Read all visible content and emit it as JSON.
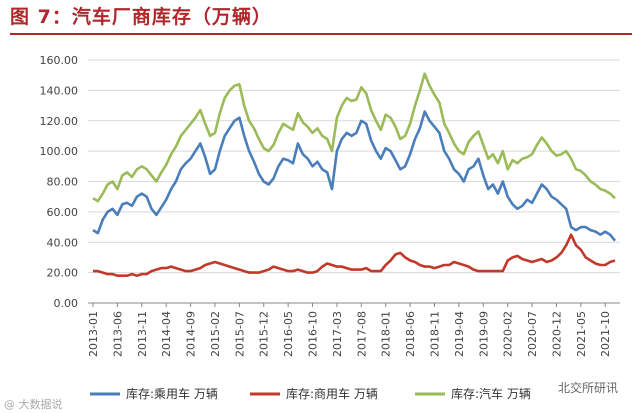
{
  "header": {
    "title": "图 7：汽车厂商库存（万辆）"
  },
  "watermarks": {
    "left": "@ 大数据说",
    "right": "北交所研讯"
  },
  "chart_data": {
    "type": "line",
    "title": "图 7：汽车厂商库存（万辆）",
    "xlabel": "",
    "ylabel": "",
    "ylim": [
      0,
      160
    ],
    "yticks": [
      "0.00",
      "20.00",
      "40.00",
      "60.00",
      "80.00",
      "100.00",
      "120.00",
      "140.00",
      "160.00"
    ],
    "start": "2013-01",
    "x_tick_labels": [
      "2013-01",
      "2013-06",
      "2013-11",
      "2014-04",
      "2014-09",
      "2015-02",
      "2015-07",
      "2015-12",
      "2016-05",
      "2016-10",
      "2017-03",
      "2017-08",
      "2018-01",
      "2018-06",
      "2018-11",
      "2019-04",
      "2019-09",
      "2020-02",
      "2020-07",
      "2020-12",
      "2021-05",
      "2021-10"
    ],
    "grid": "horizontal",
    "legend_position": "bottom",
    "series": [
      {
        "name": "库存:乘用车 万辆",
        "color": "#4a7ebb",
        "values": [
          48,
          46,
          55,
          60,
          62,
          58,
          65,
          66,
          64,
          70,
          72,
          70,
          62,
          58,
          63,
          68,
          75,
          80,
          88,
          92,
          95,
          100,
          105,
          96,
          85,
          88,
          100,
          110,
          115,
          120,
          122,
          110,
          100,
          93,
          85,
          80,
          78,
          82,
          90,
          95,
          94,
          92,
          105,
          98,
          95,
          90,
          93,
          88,
          86,
          75,
          100,
          108,
          112,
          110,
          112,
          120,
          118,
          107,
          100,
          95,
          102,
          100,
          94,
          88,
          90,
          98,
          108,
          115,
          126,
          120,
          116,
          112,
          100,
          95,
          88,
          85,
          80,
          88,
          90,
          95,
          84,
          75,
          78,
          72,
          80,
          70,
          65,
          62,
          64,
          68,
          66,
          72,
          78,
          75,
          70,
          68,
          65,
          62,
          50,
          48,
          50,
          50,
          48,
          47,
          45,
          47,
          45,
          41
        ]
      },
      {
        "name": "库存:商用车 万辆",
        "color": "#c0392b",
        "values": [
          21,
          21,
          20,
          19,
          19,
          18,
          18,
          18,
          19,
          18,
          19,
          19,
          21,
          22,
          23,
          23,
          24,
          23,
          22,
          21,
          21,
          22,
          23,
          25,
          26,
          27,
          26,
          25,
          24,
          23,
          22,
          21,
          20,
          20,
          20,
          21,
          22,
          24,
          23,
          22,
          21,
          21,
          22,
          21,
          20,
          20,
          21,
          24,
          26,
          25,
          24,
          24,
          23,
          22,
          22,
          22,
          23,
          21,
          21,
          21,
          25,
          28,
          32,
          33,
          30,
          28,
          27,
          25,
          24,
          24,
          23,
          24,
          25,
          25,
          27,
          26,
          25,
          24,
          22,
          21,
          21,
          21,
          21,
          21,
          21,
          28,
          30,
          31,
          29,
          28,
          27,
          28,
          29,
          27,
          28,
          30,
          33,
          38,
          45,
          38,
          35,
          30,
          28,
          26,
          25,
          25,
          27,
          28
        ]
      },
      {
        "name": "库存:汽车 万辆",
        "color": "#9bbb59",
        "values": [
          69,
          67,
          72,
          78,
          80,
          75,
          84,
          86,
          83,
          88,
          90,
          88,
          84,
          80,
          86,
          91,
          98,
          103,
          110,
          114,
          118,
          122,
          127,
          118,
          110,
          112,
          125,
          135,
          140,
          143,
          144,
          130,
          120,
          115,
          108,
          102,
          100,
          104,
          112,
          118,
          116,
          114,
          125,
          119,
          116,
          112,
          115,
          110,
          108,
          100,
          122,
          130,
          135,
          133,
          134,
          142,
          138,
          127,
          120,
          114,
          124,
          122,
          116,
          108,
          110,
          118,
          130,
          140,
          151,
          143,
          137,
          132,
          118,
          112,
          105,
          100,
          98,
          106,
          110,
          113,
          104,
          95,
          98,
          92,
          100,
          88,
          94,
          92,
          95,
          96,
          98,
          104,
          109,
          105,
          100,
          97,
          98,
          100,
          95,
          88,
          87,
          84,
          80,
          78,
          75,
          74,
          72,
          69
        ]
      }
    ]
  }
}
